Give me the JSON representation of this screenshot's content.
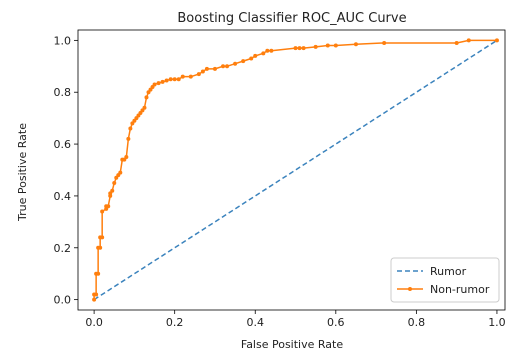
{
  "chart_data": {
    "type": "line",
    "title": "Boosting Classifier ROC_AUC Curve",
    "xlabel": "False Positive Rate",
    "ylabel": "True Positive Rate",
    "xlim": [
      -0.04,
      1.02
    ],
    "ylim": [
      -0.04,
      1.04
    ],
    "x_ticks": [
      0.0,
      0.2,
      0.4,
      0.6,
      0.8,
      1.0
    ],
    "y_ticks": [
      0.0,
      0.2,
      0.4,
      0.6,
      0.8,
      1.0
    ],
    "x_tick_labels": [
      "0.0",
      "0.2",
      "0.4",
      "0.6",
      "0.8",
      "1.0"
    ],
    "y_tick_labels": [
      "0.0",
      "0.2",
      "0.4",
      "0.6",
      "0.8",
      "1.0"
    ],
    "grid": false,
    "legend_position": "lower-right",
    "series": [
      {
        "name": "Rumor",
        "color": "#3b83bd",
        "line_style": "dashed",
        "marker": "none",
        "x": [
          0.0,
          1.0
        ],
        "y": [
          0.0,
          1.0
        ]
      },
      {
        "name": "Non-rumor",
        "color": "#ff7f0e",
        "line_style": "solid",
        "marker": "dot",
        "x": [
          0.0,
          0.0,
          0.005,
          0.005,
          0.01,
          0.01,
          0.015,
          0.015,
          0.02,
          0.02,
          0.03,
          0.03,
          0.035,
          0.04,
          0.04,
          0.045,
          0.05,
          0.055,
          0.06,
          0.065,
          0.07,
          0.075,
          0.08,
          0.085,
          0.09,
          0.095,
          0.1,
          0.105,
          0.11,
          0.115,
          0.12,
          0.125,
          0.13,
          0.135,
          0.14,
          0.145,
          0.15,
          0.16,
          0.17,
          0.18,
          0.19,
          0.2,
          0.21,
          0.22,
          0.24,
          0.26,
          0.27,
          0.28,
          0.3,
          0.32,
          0.33,
          0.35,
          0.37,
          0.39,
          0.4,
          0.42,
          0.43,
          0.44,
          0.5,
          0.51,
          0.52,
          0.55,
          0.58,
          0.6,
          0.65,
          0.72,
          0.9,
          0.93,
          1.0
        ],
        "y": [
          0.0,
          0.02,
          0.02,
          0.1,
          0.1,
          0.2,
          0.2,
          0.24,
          0.24,
          0.34,
          0.35,
          0.36,
          0.36,
          0.4,
          0.41,
          0.42,
          0.45,
          0.47,
          0.48,
          0.49,
          0.54,
          0.54,
          0.55,
          0.62,
          0.66,
          0.68,
          0.69,
          0.7,
          0.71,
          0.72,
          0.73,
          0.74,
          0.78,
          0.8,
          0.81,
          0.82,
          0.83,
          0.835,
          0.84,
          0.845,
          0.85,
          0.85,
          0.85,
          0.86,
          0.86,
          0.87,
          0.88,
          0.89,
          0.89,
          0.9,
          0.9,
          0.91,
          0.92,
          0.93,
          0.94,
          0.95,
          0.96,
          0.96,
          0.97,
          0.97,
          0.97,
          0.975,
          0.98,
          0.98,
          0.985,
          0.99,
          0.99,
          1.0,
          1.0
        ]
      }
    ]
  }
}
